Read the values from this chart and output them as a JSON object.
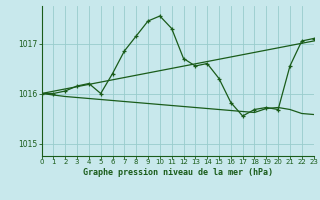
{
  "title": "Graphe pression niveau de la mer (hPa)",
  "bg": "#c8e8ec",
  "lc": "#1a5c1a",
  "gc": "#99cccc",
  "xlim": [
    0,
    23
  ],
  "ylim": [
    1014.75,
    1017.75
  ],
  "yticks": [
    1015,
    1016,
    1017
  ],
  "xticks": [
    0,
    1,
    2,
    3,
    4,
    5,
    6,
    7,
    8,
    9,
    10,
    11,
    12,
    13,
    14,
    15,
    16,
    17,
    18,
    19,
    20,
    21,
    22,
    23
  ],
  "line1_x": [
    0,
    1,
    2,
    3,
    4,
    5,
    6,
    7,
    8,
    9,
    10,
    11,
    12,
    13,
    14,
    15,
    16,
    17,
    18,
    19,
    20,
    21,
    22,
    23
  ],
  "line1_y": [
    1016.0,
    1016.0,
    1016.05,
    1016.15,
    1016.2,
    1016.0,
    1016.4,
    1016.85,
    1017.15,
    1017.45,
    1017.55,
    1017.3,
    1016.7,
    1016.55,
    1016.6,
    1016.3,
    1015.82,
    1015.55,
    1015.68,
    1015.72,
    1015.68,
    1016.55,
    1017.05,
    1017.1
  ],
  "line2_x": [
    0,
    23
  ],
  "line2_y": [
    1016.0,
    1017.05
  ],
  "line3_x": [
    0,
    1,
    2,
    3,
    4,
    5,
    6,
    7,
    8,
    9,
    10,
    11,
    12,
    13,
    14,
    15,
    16,
    17,
    18,
    19,
    20,
    21,
    22,
    23
  ],
  "line3_y": [
    1016.0,
    1015.97,
    1015.94,
    1015.92,
    1015.9,
    1015.88,
    1015.86,
    1015.84,
    1015.82,
    1015.8,
    1015.78,
    1015.76,
    1015.74,
    1015.72,
    1015.7,
    1015.68,
    1015.66,
    1015.64,
    1015.62,
    1015.7,
    1015.72,
    1015.68,
    1015.6,
    1015.58
  ]
}
